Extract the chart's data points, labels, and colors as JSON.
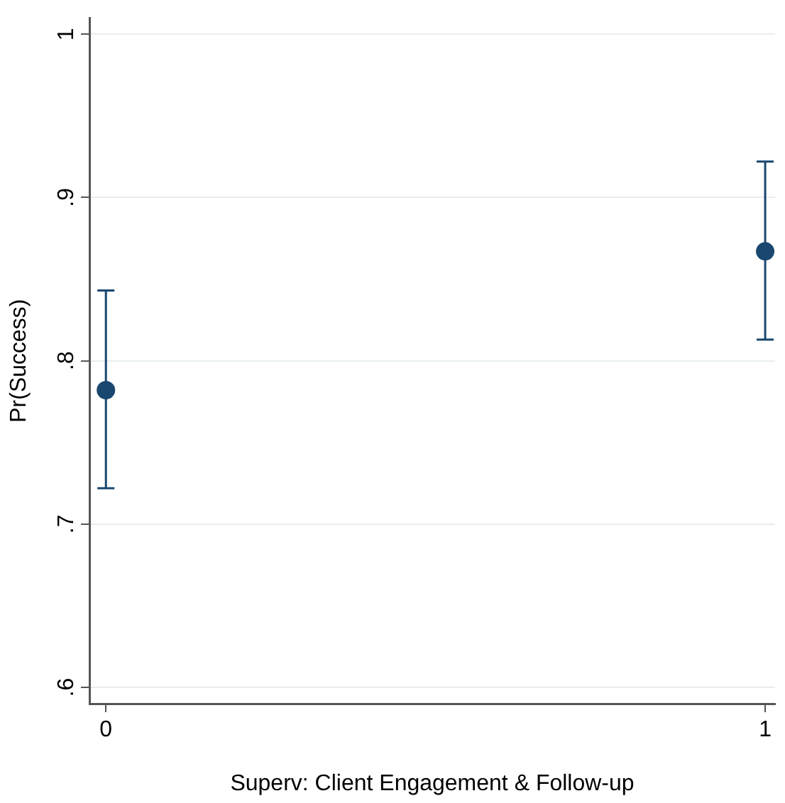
{
  "chart_data": {
    "type": "scatter",
    "xlabel": "Superv: Client Engagement & Follow-up",
    "ylabel": "Pr(Success)",
    "x": [
      0,
      1
    ],
    "series": [
      {
        "color": "#1a476f",
        "values": [
          0.782,
          0.867
        ],
        "errors": [
          [
            0.722,
            0.843
          ],
          [
            0.813,
            0.922
          ]
        ]
      }
    ],
    "xlim": [
      -0.025,
      1.015
    ],
    "xticks": [
      0,
      1
    ],
    "ylim": [
      0.59,
      1.01
    ],
    "yticks": [
      {
        "value": 0.6,
        "label": ".6"
      },
      {
        "value": 0.7,
        "label": ".7"
      },
      {
        "value": 0.8,
        "label": ".8"
      },
      {
        "value": 0.9,
        "label": ".9"
      },
      {
        "value": 1,
        "label": "1"
      }
    ],
    "grid": "y",
    "marker": "circle",
    "legend": false
  }
}
